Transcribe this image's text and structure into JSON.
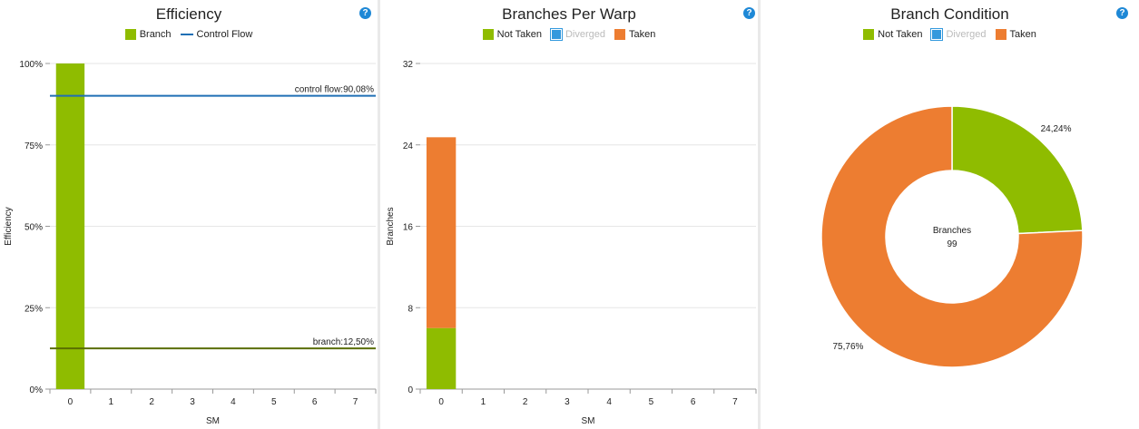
{
  "colors": {
    "not_taken": "#8fbc00",
    "taken": "#ed7d31",
    "diverged": "#3399dd",
    "control_flow": "#1f6fb5",
    "branch_line": "#5a6e00",
    "grid": "#e6e6e6"
  },
  "help_label": "?",
  "chart_data": [
    {
      "type": "bar",
      "title": "Efficiency",
      "legend": [
        {
          "name": "Branch",
          "kind": "box",
          "color": "#8fbc00"
        },
        {
          "name": "Control Flow",
          "kind": "line",
          "color": "#1f6fb5"
        }
      ],
      "xlabel": "SM",
      "ylabel": "Efficiency",
      "categories": [
        "0",
        "1",
        "2",
        "3",
        "4",
        "5",
        "6",
        "7"
      ],
      "series": [
        {
          "name": "Branch",
          "values": [
            100,
            null,
            null,
            null,
            null,
            null,
            null,
            null
          ]
        }
      ],
      "yticks": [
        {
          "value": 0,
          "label": "0%"
        },
        {
          "value": 25,
          "label": "25%"
        },
        {
          "value": 50,
          "label": "50%"
        },
        {
          "value": 75,
          "label": "75%"
        },
        {
          "value": 100,
          "label": "100%"
        }
      ],
      "ylim": [
        0,
        100
      ],
      "reference_lines": [
        {
          "name": "control flow",
          "value": 90.08,
          "label": "control flow:90,08%",
          "color": "#1f6fb5"
        },
        {
          "name": "branch",
          "value": 12.5,
          "label": "branch:12,50%",
          "color": "#5a6e00"
        }
      ],
      "grid": true
    },
    {
      "type": "bar",
      "stacked": true,
      "title": "Branches Per Warp",
      "legend": [
        {
          "name": "Not Taken",
          "kind": "box",
          "color": "#8fbc00"
        },
        {
          "name": "Diverged",
          "kind": "box-dim",
          "color": "#3399dd"
        },
        {
          "name": "Taken",
          "kind": "box",
          "color": "#ed7d31"
        }
      ],
      "xlabel": "SM",
      "ylabel": "Branches",
      "categories": [
        "0",
        "1",
        "2",
        "3",
        "4",
        "5",
        "6",
        "7"
      ],
      "series": [
        {
          "name": "Not Taken",
          "values": [
            6,
            null,
            null,
            null,
            null,
            null,
            null,
            null
          ]
        },
        {
          "name": "Taken",
          "values": [
            18.75,
            null,
            null,
            null,
            null,
            null,
            null,
            null
          ]
        }
      ],
      "yticks": [
        {
          "value": 0,
          "label": "0"
        },
        {
          "value": 8,
          "label": "8"
        },
        {
          "value": 16,
          "label": "16"
        },
        {
          "value": 24,
          "label": "24"
        },
        {
          "value": 32,
          "label": "32"
        }
      ],
      "ylim": [
        0,
        32
      ],
      "grid": true
    },
    {
      "type": "pie",
      "donut": true,
      "title": "Branch Condition",
      "legend": [
        {
          "name": "Not Taken",
          "kind": "box",
          "color": "#8fbc00"
        },
        {
          "name": "Diverged",
          "kind": "box-dim",
          "color": "#3399dd"
        },
        {
          "name": "Taken",
          "kind": "box",
          "color": "#ed7d31"
        }
      ],
      "slices": [
        {
          "name": "Not Taken",
          "value": 24.24,
          "label": "24,24%",
          "color": "#8fbc00"
        },
        {
          "name": "Taken",
          "value": 75.76,
          "label": "75,76%",
          "color": "#ed7d31"
        }
      ],
      "center_label": "Branches",
      "center_value": "99"
    }
  ]
}
